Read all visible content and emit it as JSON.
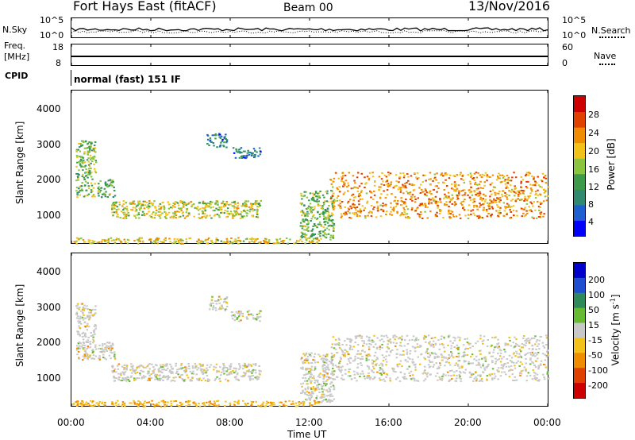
{
  "header": {
    "station": "Fort Hays East (fitACF)",
    "beam": "Beam 00",
    "date": "13/Nov/2016"
  },
  "top_panels": {
    "nsky_label": "N.Sky",
    "nsearch_label": "N.Search",
    "nsky_ticks": [
      "10^5",
      "10^0"
    ],
    "nsearch_ticks": [
      "10^5",
      "10^0"
    ],
    "freq_label": "Freq.",
    "freq_unit": "[MHz]",
    "freq_ticks": [
      "18",
      "8"
    ],
    "nave_label": "Nave",
    "nave_ticks": [
      "60",
      "0"
    ],
    "cpid_label": "CPID",
    "cpid_value": "normal (fast) 151 IF"
  },
  "chart_data": [
    {
      "type": "heatmap",
      "name": "power",
      "ylabel": "Slant Range [km]",
      "xlabel": "Time UT",
      "yticks": [
        "4000",
        "3000",
        "2000",
        "1000"
      ],
      "ylim": [
        180,
        4500
      ],
      "xlim_hours": [
        0,
        24
      ],
      "colorbar": {
        "label": "Power [dB]",
        "ticks": [
          "28",
          "24",
          "20",
          "16",
          "12",
          "8",
          "4"
        ],
        "range": [
          0,
          30
        ],
        "colors": [
          "#0000ff",
          "#1f5fd0",
          "#2f8a70",
          "#3c9a4a",
          "#8bc53f",
          "#f2c21a",
          "#f08c00",
          "#e04000",
          "#cc0000"
        ]
      },
      "regions": [
        {
          "t": [
            0.2,
            1.2
          ],
          "r": [
            1500,
            3100
          ],
          "level": 0.4
        },
        {
          "t": [
            1.3,
            2.2
          ],
          "r": [
            1500,
            2000
          ],
          "level": 0.35
        },
        {
          "t": [
            2.0,
            9.5
          ],
          "r": [
            900,
            1400
          ],
          "level": 0.5
        },
        {
          "t": [
            8.0,
            9.5
          ],
          "r": [
            2600,
            2900
          ],
          "level": 0.2
        },
        {
          "t": [
            6.8,
            7.8
          ],
          "r": [
            2900,
            3300
          ],
          "level": 0.2
        },
        {
          "t": [
            11.5,
            13.2
          ],
          "r": [
            300,
            1700
          ],
          "level": 0.4
        },
        {
          "t": [
            13.0,
            24.0
          ],
          "r": [
            900,
            2200
          ],
          "level": 0.65
        },
        {
          "t": [
            0.0,
            12.5
          ],
          "r": [
            180,
            350
          ],
          "level": 0.55
        }
      ]
    },
    {
      "type": "heatmap",
      "name": "velocity",
      "ylabel": "Slant Range [km]",
      "xlabel": "Time UT",
      "yticks": [
        "4000",
        "3000",
        "2000",
        "1000"
      ],
      "ylim": [
        180,
        4500
      ],
      "xlim_hours": [
        0,
        24
      ],
      "xticks": [
        "00:00",
        "04:00",
        "08:00",
        "12:00",
        "16:00",
        "20:00",
        "00:00"
      ],
      "colorbar": {
        "label": "Velocity [m s",
        "label_sup": "-1",
        "label_end": "]",
        "ticks": [
          "200",
          "100",
          "50",
          "15",
          "-15",
          "-50",
          "-100",
          "-200"
        ],
        "colors": [
          "#0000cc",
          "#1f4fd0",
          "#2f8a5a",
          "#66bb33",
          "#c8c8c8",
          "#f2c21a",
          "#f08c00",
          "#e04000",
          "#cc0000"
        ]
      }
    }
  ]
}
